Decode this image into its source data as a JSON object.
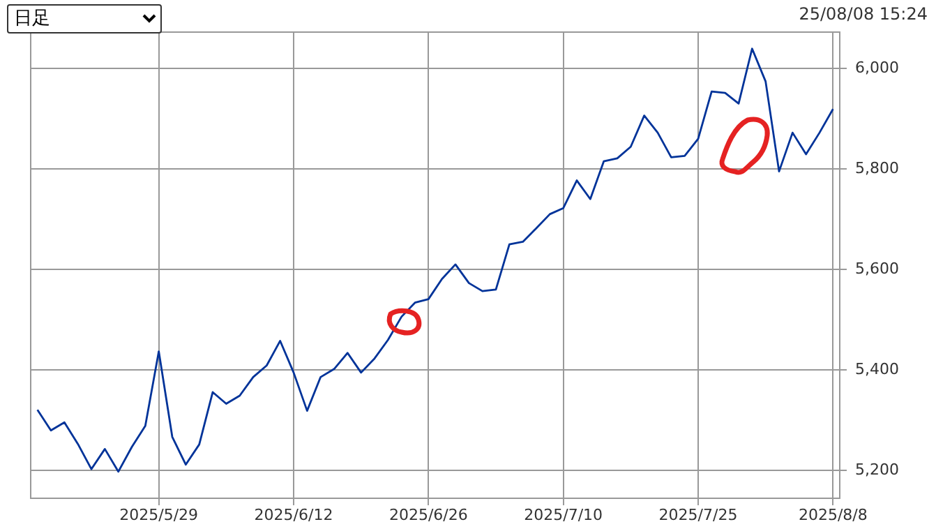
{
  "chart_data": {
    "type": "line",
    "annotations": [
      "日足",
      "25/08/08 15:24"
    ],
    "categories": [
      null,
      null,
      null,
      null,
      null,
      null,
      null,
      null,
      null,
      "2025/5/29",
      null,
      null,
      null,
      null,
      null,
      null,
      null,
      null,
      null,
      "2025/6/12",
      null,
      null,
      null,
      null,
      null,
      null,
      null,
      null,
      null,
      "2025/6/26",
      null,
      null,
      null,
      null,
      null,
      null,
      null,
      null,
      null,
      "2025/7/10",
      null,
      null,
      null,
      null,
      null,
      null,
      null,
      null,
      null,
      "2025/7/25",
      null,
      null,
      null,
      null,
      null,
      null,
      null,
      null,
      null,
      "2025/8/8"
    ],
    "series": [
      {
        "color": "#003399",
        "values": [
          5321,
          5280,
          5296,
          5253,
          5203,
          5243,
          5198,
          5247,
          5289,
          5437,
          5267,
          5212,
          5252,
          5356,
          5333,
          5349,
          5386,
          5409,
          5458,
          5395,
          5319,
          5386,
          5402,
          5434,
          5395,
          5423,
          5460,
          5506,
          5534,
          5541,
          5581,
          5610,
          5573,
          5557,
          5560,
          5650,
          5655,
          5682,
          5710,
          5722,
          5777,
          5740,
          5815,
          5821,
          5844,
          5906,
          5872,
          5823,
          5826,
          5860,
          5954,
          5951,
          5930,
          6039,
          5974,
          5795,
          5872,
          5829,
          5872,
          5919
        ]
      }
    ],
    "ylim": [
      5145,
      6072
    ],
    "yticks": [
      {
        "value": 5200,
        "label": "5,200"
      },
      {
        "value": 5400,
        "label": "5,400"
      },
      {
        "value": 5600,
        "label": "5,600"
      },
      {
        "value": 5800,
        "label": "5,800"
      },
      {
        "value": 6000,
        "label": "6,000"
      }
    ],
    "grid": true,
    "legend": false,
    "marker": "none",
    "line_style": "solid"
  }
}
